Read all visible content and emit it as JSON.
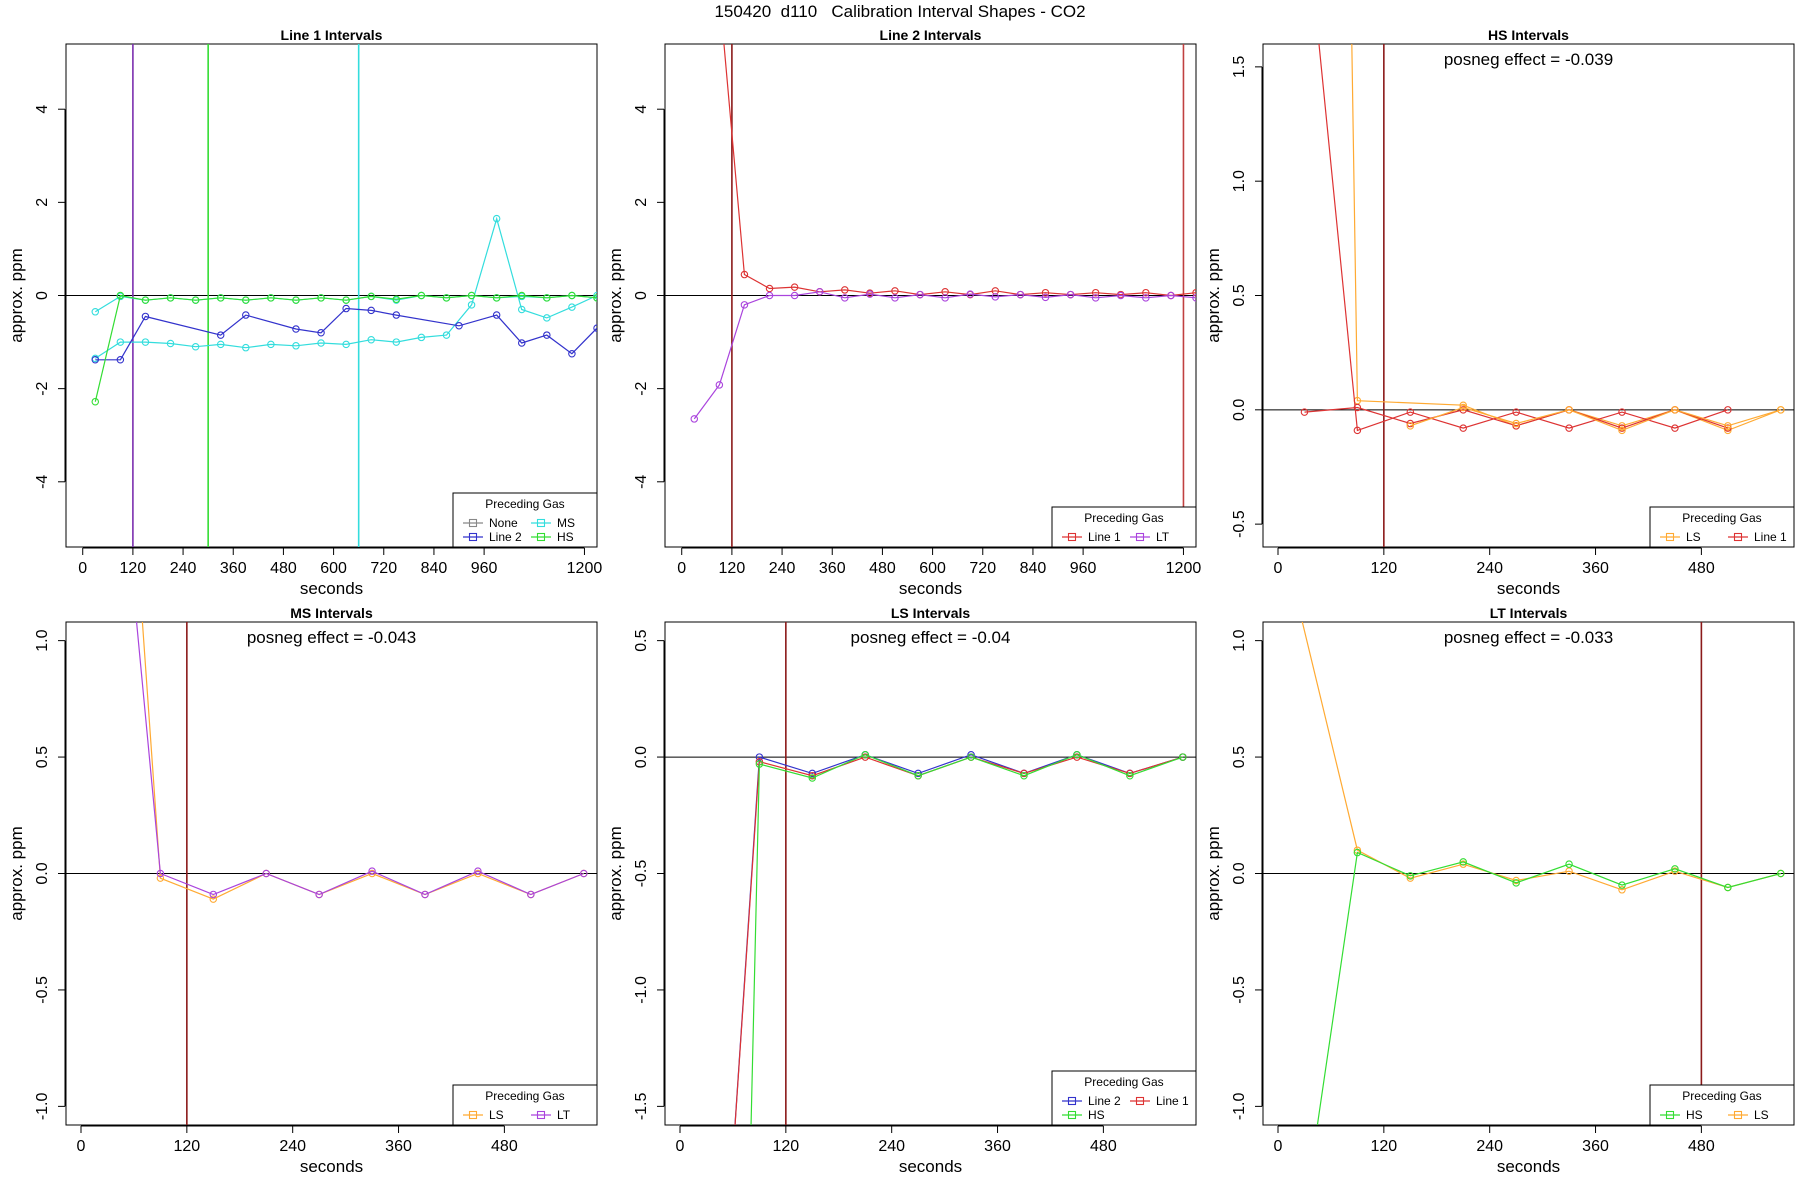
{
  "page": {
    "title": "150420  d110   Calibration Interval Shapes - CO2"
  },
  "chart_data": [
    {
      "type": "line",
      "title": "Line 1 Intervals",
      "xlabel": "seconds",
      "ylabel": "approx. ppm",
      "xlim": [
        -40,
        1230
      ],
      "ylim": [
        -5.4,
        5.4
      ],
      "xticks": [
        0,
        120,
        240,
        360,
        480,
        600,
        720,
        840,
        960,
        1200
      ],
      "yticks": [
        -4,
        -2,
        0,
        2,
        4
      ],
      "hline": 0,
      "vlines": [
        {
          "x": 120,
          "color": "#7B2FAF"
        },
        {
          "x": 300,
          "color": "#33DD33"
        },
        {
          "x": 660,
          "color": "#33DDDD"
        }
      ],
      "legend": {
        "title": "Preceding Gas",
        "position": "bottom-right",
        "columns": 2,
        "entries": [
          {
            "label": "None",
            "color": "#888888"
          },
          {
            "label": "MS",
            "color": "#33DDDD"
          },
          {
            "label": "Line 2",
            "color": "#3333CC"
          },
          {
            "label": "HS",
            "color": "#33DD33"
          }
        ]
      },
      "series": [
        {
          "name": "MS",
          "color": "#33DDDD",
          "x": [
            30,
            90,
            150,
            210,
            270,
            330,
            390,
            450,
            510,
            570,
            630,
            690,
            750,
            810,
            870,
            930,
            990,
            1050,
            1110,
            1170,
            1230
          ],
          "y": [
            -0.35,
            -0.02,
            -0.1,
            -0.05,
            -0.1,
            -0.05,
            -0.1,
            -0.05,
            -0.1,
            -0.05,
            -0.1,
            -0.02,
            -0.1,
            0,
            -0.05,
            0,
            -0.05,
            -0.02,
            -0.05,
            0,
            -0.05
          ]
        },
        {
          "name": "MS",
          "color": "#33DDDD",
          "x": [
            30,
            90,
            150,
            210,
            270,
            330,
            390,
            450,
            510,
            570,
            630,
            690,
            750,
            810,
            870,
            930,
            990,
            1050,
            1110,
            1170,
            1230
          ],
          "y": [
            -1.35,
            -1.0,
            -1.0,
            -1.03,
            -1.1,
            -1.05,
            -1.12,
            -1.05,
            -1.08,
            -1.02,
            -1.05,
            -0.95,
            -1.0,
            -0.9,
            -0.85,
            -0.2,
            1.65,
            -0.3,
            -0.48,
            -0.25,
            0.0
          ]
        },
        {
          "name": "Line 2",
          "color": "#3333CC",
          "x": [
            30,
            90,
            150,
            330,
            390,
            510,
            570,
            630,
            690,
            750,
            900,
            990,
            1050,
            1110,
            1170,
            1230
          ],
          "y": [
            -1.38,
            -1.38,
            -0.45,
            -0.85,
            -0.42,
            -0.72,
            -0.8,
            -0.28,
            -0.32,
            -0.42,
            -0.65,
            -0.42,
            -1.02,
            -0.85,
            -1.25,
            -0.7
          ]
        },
        {
          "name": "HS",
          "color": "#33DD33",
          "x": [
            30,
            90,
            150,
            210,
            270,
            330,
            390,
            450,
            510,
            570,
            630,
            690,
            750,
            810,
            870,
            930,
            990,
            1050,
            1110,
            1170,
            1230
          ],
          "y": [
            -2.28,
            0,
            -0.1,
            -0.05,
            -0.1,
            -0.05,
            -0.1,
            -0.05,
            -0.1,
            -0.05,
            -0.1,
            -0.02,
            -0.08,
            0,
            -0.05,
            0,
            -0.05,
            0,
            -0.05,
            0,
            -0.05
          ]
        }
      ]
    },
    {
      "type": "line",
      "title": "Line 2 Intervals",
      "xlabel": "seconds",
      "ylabel": "approx. ppm",
      "xlim": [
        -40,
        1230
      ],
      "ylim": [
        -5.4,
        5.4
      ],
      "xticks": [
        0,
        120,
        240,
        360,
        480,
        600,
        720,
        840,
        960,
        1200
      ],
      "yticks": [
        -4,
        -2,
        0,
        2,
        4
      ],
      "hline": 0,
      "vlines": [
        {
          "x": 120,
          "color": "#8B1A1A"
        },
        {
          "x": 1200,
          "color": "#C04040"
        }
      ],
      "legend": {
        "title": "Preceding Gas",
        "position": "bottom-right",
        "columns": 2,
        "entries": [
          {
            "label": "Line 1",
            "color": "#DD3333"
          },
          {
            "label": "LT",
            "color": "#AA44DD"
          }
        ]
      },
      "series": [
        {
          "name": "Line 1",
          "color": "#DD3333",
          "x": [
            90,
            150,
            210,
            270,
            330,
            390,
            450,
            510,
            570,
            630,
            690,
            750,
            810,
            870,
            930,
            990,
            1050,
            1110,
            1170,
            1230
          ],
          "y": [
            6.5,
            0.45,
            0.15,
            0.18,
            0.08,
            0.12,
            0.05,
            0.1,
            0.02,
            0.08,
            0.02,
            0.1,
            0.02,
            0.06,
            0.02,
            0.06,
            0.02,
            0.06,
            0.0,
            0.06
          ]
        },
        {
          "name": "LT",
          "color": "#AA44DD",
          "x": [
            30,
            90,
            150,
            210,
            270,
            330,
            390,
            450,
            510,
            570,
            630,
            690,
            750,
            810,
            870,
            930,
            990,
            1050,
            1110,
            1170,
            1230
          ],
          "y": [
            -2.65,
            -1.92,
            -0.2,
            0.0,
            0.0,
            0.08,
            -0.05,
            0.03,
            -0.05,
            0.02,
            -0.05,
            0.03,
            -0.03,
            0.02,
            -0.04,
            0.02,
            -0.05,
            0.0,
            -0.05,
            0.0,
            -0.05
          ]
        }
      ]
    },
    {
      "type": "line",
      "title": "HS Intervals",
      "xlabel": "seconds",
      "ylabel": "approx. ppm",
      "xlim": [
        -17,
        585
      ],
      "ylim": [
        -0.6,
        1.6
      ],
      "xticks": [
        0,
        120,
        240,
        360,
        480
      ],
      "yticks": [
        -0.5,
        0.0,
        0.5,
        1.0,
        1.5
      ],
      "hline": 0,
      "vlines": [
        {
          "x": 120,
          "color": "#8B1A1A"
        }
      ],
      "annotation": "posneg effect = -0.039",
      "legend": {
        "title": "Preceding Gas",
        "position": "bottom-right",
        "columns": 2,
        "entries": [
          {
            "label": "LS",
            "color": "#FFAA33"
          },
          {
            "label": "Line 1",
            "color": "#DD3333"
          }
        ]
      },
      "series": [
        {
          "name": "LS",
          "color": "#FFAA33",
          "x": [
            80,
            90,
            210,
            270,
            330,
            390,
            450,
            510,
            570
          ],
          "y": [
            2.5,
            0.04,
            0.02,
            -0.07,
            0.0,
            -0.07,
            0.0,
            -0.09,
            0.0
          ]
        },
        {
          "name": "Line 1",
          "color": "#DD3333",
          "x": [
            40,
            90,
            150,
            210,
            270,
            330,
            390,
            450,
            510
          ],
          "y": [
            1.85,
            -0.09,
            -0.01,
            -0.08,
            -0.01,
            -0.08,
            -0.01,
            -0.08,
            0.0
          ]
        },
        {
          "name": "Line 1",
          "color": "#DD3333",
          "x": [
            30,
            90,
            150,
            210,
            270,
            330,
            390,
            450,
            510
          ],
          "y": [
            -0.01,
            0.01,
            -0.06,
            0.0,
            -0.07,
            0.0,
            -0.08,
            0.0,
            -0.08
          ]
        },
        {
          "name": "LS",
          "color": "#FFAA33",
          "x": [
            150,
            210,
            270,
            330,
            390,
            450,
            510,
            570
          ],
          "y": [
            -0.07,
            0.01,
            -0.06,
            0.0,
            -0.09,
            0.0,
            -0.07,
            0.0
          ]
        }
      ]
    },
    {
      "type": "line",
      "title": "MS Intervals",
      "xlabel": "seconds",
      "ylabel": "approx. ppm",
      "xlim": [
        -17,
        585
      ],
      "ylim": [
        -1.08,
        1.08
      ],
      "xticks": [
        0,
        120,
        240,
        360,
        480
      ],
      "yticks": [
        -1.0,
        -0.5,
        0.0,
        0.5,
        1.0
      ],
      "hline": 0,
      "vlines": [
        {
          "x": 120,
          "color": "#8B1A1A"
        }
      ],
      "annotation": "posneg effect = -0.043",
      "legend": {
        "title": "Preceding Gas",
        "position": "bottom-right",
        "columns": 2,
        "entries": [
          {
            "label": "LS",
            "color": "#FFAA33"
          },
          {
            "label": "LT",
            "color": "#AA44DD"
          }
        ]
      },
      "series": [
        {
          "name": "LS",
          "color": "#FFAA33",
          "x": [
            60,
            90,
            150,
            210,
            270,
            330,
            390,
            450,
            510,
            570
          ],
          "y": [
            1.6,
            -0.02,
            -0.11,
            0.0,
            -0.09,
            0.0,
            -0.09,
            0.0,
            -0.09,
            0.0
          ]
        },
        {
          "name": "LT",
          "color": "#AA44DD",
          "x": [
            50,
            90,
            150,
            210,
            270,
            330,
            390,
            450,
            510,
            570
          ],
          "y": [
            1.6,
            0.0,
            -0.09,
            0.0,
            -0.09,
            0.01,
            -0.09,
            0.01,
            -0.09,
            0.0
          ]
        }
      ]
    },
    {
      "type": "line",
      "title": "LS Intervals",
      "xlabel": "seconds",
      "ylabel": "approx. ppm",
      "xlim": [
        -17,
        585
      ],
      "ylim": [
        -1.58,
        0.58
      ],
      "xticks": [
        0,
        120,
        240,
        360,
        480
      ],
      "yticks": [
        -1.5,
        -1.0,
        -0.5,
        0.0,
        0.5
      ],
      "hline": 0,
      "vlines": [
        {
          "x": 120,
          "color": "#8B1A1A"
        }
      ],
      "annotation": "posneg effect = -0.04",
      "legend": {
        "title": "Preceding Gas",
        "position": "bottom-right",
        "columns": 2,
        "entries": [
          {
            "label": "Line 2",
            "color": "#3333CC"
          },
          {
            "label": "Line 1",
            "color": "#DD3333"
          },
          {
            "label": "HS",
            "color": "#33DD33"
          }
        ]
      },
      "series": [
        {
          "name": "Line 2",
          "color": "#3333CC",
          "x": [
            55,
            90,
            150,
            210,
            270,
            330,
            390,
            450,
            510,
            570
          ],
          "y": [
            -2.0,
            0.0,
            -0.07,
            0.01,
            -0.07,
            0.01,
            -0.07,
            0.01,
            -0.07,
            0.0
          ]
        },
        {
          "name": "Line 1",
          "color": "#DD3333",
          "x": [
            55,
            90,
            150,
            210,
            270,
            330,
            390,
            450,
            510,
            570
          ],
          "y": [
            -2.0,
            -0.02,
            -0.08,
            0.0,
            -0.08,
            0.0,
            -0.07,
            0.0,
            -0.07,
            0.0
          ]
        },
        {
          "name": "HS",
          "color": "#33DD33",
          "x": [
            78,
            90,
            150,
            210,
            270,
            330,
            390,
            450,
            510,
            570
          ],
          "y": [
            -2.0,
            -0.03,
            -0.09,
            0.01,
            -0.08,
            0.0,
            -0.08,
            0.01,
            -0.08,
            0.0
          ]
        }
      ]
    },
    {
      "type": "line",
      "title": "LT Intervals",
      "xlabel": "seconds",
      "ylabel": "approx. ppm",
      "xlim": [
        -17,
        585
      ],
      "ylim": [
        -1.08,
        1.08
      ],
      "xticks": [
        0,
        120,
        240,
        360,
        480
      ],
      "yticks": [
        -1.0,
        -0.5,
        0.0,
        0.5,
        1.0
      ],
      "hline": 0,
      "vlines": [
        {
          "x": 480,
          "color": "#8B1A1A"
        }
      ],
      "annotation": "posneg effect = -0.033",
      "legend": {
        "title": "Preceding Gas",
        "position": "bottom-right",
        "columns": 2,
        "entries": [
          {
            "label": "HS",
            "color": "#33DD33"
          },
          {
            "label": "LS",
            "color": "#FFAA33"
          }
        ]
      },
      "series": [
        {
          "name": "LS",
          "color": "#FFAA33",
          "x": [
            20,
            90,
            150,
            210,
            270,
            330,
            390,
            450,
            510,
            570
          ],
          "y": [
            1.2,
            0.1,
            -0.02,
            0.04,
            -0.03,
            0.01,
            -0.07,
            0.01,
            -0.06,
            0.0
          ]
        },
        {
          "name": "HS",
          "color": "#33DD33",
          "x": [
            40,
            90,
            150,
            210,
            270,
            330,
            390,
            450,
            510,
            570
          ],
          "y": [
            -1.2,
            0.09,
            -0.01,
            0.05,
            -0.04,
            0.04,
            -0.05,
            0.02,
            -0.06,
            0.0
          ]
        }
      ]
    }
  ]
}
